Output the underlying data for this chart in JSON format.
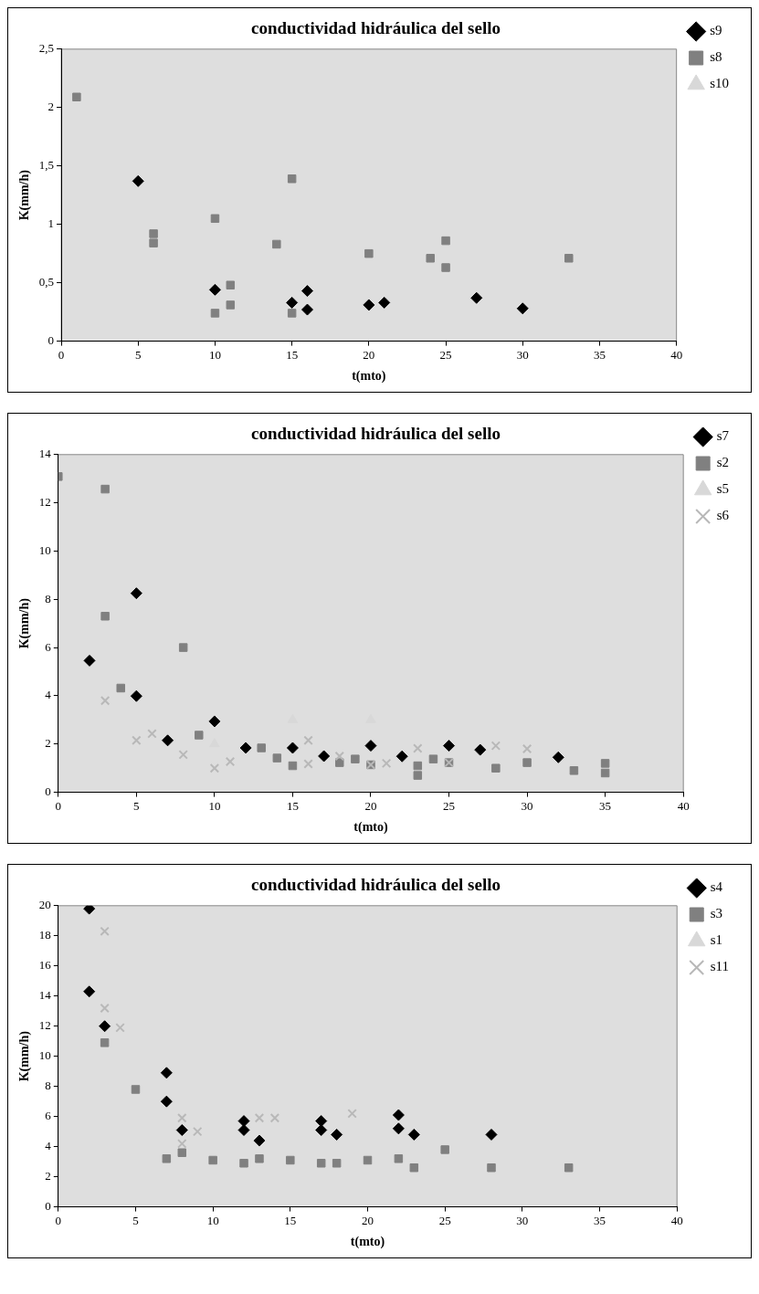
{
  "chart_data": [
    {
      "type": "scatter",
      "title": "conductividad hidráulica del sello",
      "xlabel": "t(mto)",
      "ylabel": "K(mm/h)",
      "xlim": [
        0,
        40
      ],
      "xticks": [
        0,
        5,
        10,
        15,
        20,
        25,
        30,
        35,
        40
      ],
      "ylim": [
        0,
        2.5
      ],
      "yticks": [
        0,
        {
          "value": 0.5,
          "label": "0,5"
        },
        1,
        {
          "value": 1.5,
          "label": "1,5"
        },
        2,
        {
          "value": 2.5,
          "label": "2,5"
        }
      ],
      "grid": false,
      "legend": "top right",
      "series": [
        {
          "name": "s9",
          "color": "#000000",
          "marker": "diamond",
          "x": [
            5,
            10,
            15,
            16,
            16,
            20,
            21,
            27,
            30
          ],
          "values": [
            1.37,
            0.44,
            0.33,
            0.43,
            0.27,
            0.31,
            0.33,
            0.37,
            0.28
          ]
        },
        {
          "name": "s8",
          "color": "#808080",
          "marker": "square",
          "x": [
            1,
            6,
            6,
            10,
            10,
            11,
            11,
            14,
            15,
            15,
            20,
            24,
            25,
            25,
            33
          ],
          "values": [
            2.09,
            0.92,
            0.84,
            1.05,
            0.24,
            0.48,
            0.31,
            0.83,
            1.39,
            0.24,
            0.75,
            0.71,
            0.86,
            0.63,
            0.71
          ]
        },
        {
          "name": "s10",
          "color": "#d8d8d8",
          "marker": "triangle"
        }
      ]
    },
    {
      "type": "scatter",
      "title": "conductividad hidráulica del sello",
      "xlabel": "t(mto)",
      "ylabel": "K(mm/h)",
      "xlim": [
        0,
        40
      ],
      "xticks": [
        0,
        5,
        10,
        15,
        20,
        25,
        30,
        35,
        40
      ],
      "ylim": [
        0,
        14
      ],
      "yticks": [
        0,
        2,
        4,
        6,
        8,
        10,
        12,
        14
      ],
      "grid": false,
      "legend": "top right",
      "series": [
        {
          "name": "s7",
          "color": "#000000",
          "marker": "diamond",
          "x": [
            2,
            5,
            5,
            7,
            10,
            12,
            15,
            17,
            20,
            22,
            25,
            27,
            32
          ],
          "values": [
            5.46,
            8.25,
            3.99,
            2.15,
            2.94,
            1.84,
            1.84,
            1.5,
            1.93,
            1.49,
            1.93,
            1.76,
            1.45
          ]
        },
        {
          "name": "s2",
          "color": "#808080",
          "marker": "square",
          "x": [
            0,
            3,
            3,
            4,
            8,
            9,
            13,
            14,
            15,
            18,
            19,
            20,
            23,
            23,
            24,
            25,
            28,
            30,
            33,
            35,
            35
          ],
          "values": [
            13.09,
            12.57,
            7.3,
            4.32,
            6.0,
            2.37,
            1.84,
            1.42,
            1.1,
            1.23,
            1.38,
            1.14,
            1.1,
            0.7,
            1.38,
            1.23,
            1.0,
            1.23,
            0.9,
            1.2,
            0.8
          ]
        },
        {
          "name": "s5",
          "color": "#d8d8d8",
          "marker": "triangle",
          "x": [
            10,
            15,
            20
          ],
          "values": [
            2.0,
            3.0,
            3.0
          ]
        },
        {
          "name": "s6",
          "color": "#b8b8b8",
          "marker": "cross",
          "x": [
            3,
            5,
            6,
            8,
            10,
            11,
            16,
            16,
            18,
            20,
            21,
            23,
            25,
            28,
            30
          ],
          "values": [
            3.8,
            2.15,
            2.43,
            1.56,
            1.0,
            1.27,
            2.15,
            1.18,
            1.5,
            1.14,
            1.2,
            1.82,
            1.23,
            1.93,
            1.8
          ]
        }
      ]
    },
    {
      "type": "scatter",
      "title": "conductividad hidráulica del sello",
      "xlabel": "t(mto)",
      "ylabel": "K(mm/h)",
      "xlim": [
        0,
        40
      ],
      "xticks": [
        0,
        5,
        10,
        15,
        20,
        25,
        30,
        35,
        40
      ],
      "ylim": [
        0,
        20
      ],
      "yticks": [
        0,
        2,
        4,
        6,
        8,
        10,
        12,
        14,
        16,
        18,
        20
      ],
      "grid": false,
      "legend": "top right",
      "series": [
        {
          "name": "s4",
          "color": "#000000",
          "marker": "diamond",
          "x": [
            2,
            2,
            3,
            7,
            7,
            8,
            12,
            12,
            13,
            17,
            17,
            18,
            22,
            22,
            23,
            28
          ],
          "values": [
            19.8,
            14.3,
            12.0,
            8.9,
            7.0,
            5.1,
            5.7,
            5.1,
            4.4,
            5.7,
            5.1,
            4.8,
            6.1,
            5.2,
            4.8,
            4.8
          ]
        },
        {
          "name": "s3",
          "color": "#808080",
          "marker": "square",
          "x": [
            3,
            5,
            7,
            8,
            10,
            12,
            13,
            15,
            17,
            18,
            20,
            22,
            23,
            25,
            28,
            33
          ],
          "values": [
            10.9,
            7.8,
            3.2,
            3.6,
            3.1,
            2.9,
            3.2,
            3.1,
            2.9,
            2.9,
            3.1,
            3.2,
            2.6,
            3.8,
            2.6,
            2.6
          ]
        },
        {
          "name": "s1",
          "color": "#d8d8d8",
          "marker": "triangle"
        },
        {
          "name": "s11",
          "color": "#b8b8b8",
          "marker": "cross",
          "x": [
            3,
            3,
            4,
            8,
            8,
            9,
            13,
            14,
            19
          ],
          "values": [
            18.3,
            13.2,
            11.9,
            5.9,
            4.2,
            5.0,
            5.9,
            5.9,
            6.2
          ]
        }
      ]
    }
  ]
}
